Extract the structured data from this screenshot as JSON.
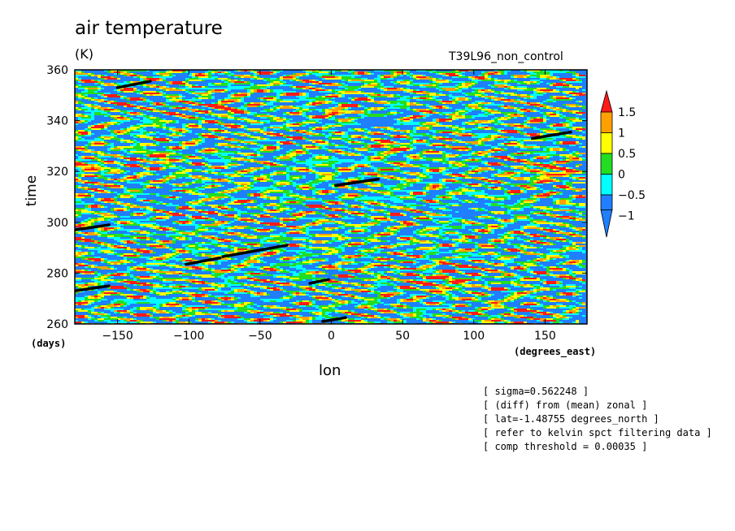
{
  "chart_data": {
    "type": "heatmap",
    "title": "air temperature",
    "units": "(K)",
    "subtitle": "T39L96_non_control",
    "xlabel": "lon",
    "xunits": "(degrees_east)",
    "ylabel": "time",
    "yunits": "(days)",
    "xlim": [
      -180,
      177
    ],
    "ylim": [
      260,
      360
    ],
    "xticks": [
      -150,
      -100,
      -50,
      0,
      50,
      100,
      150
    ],
    "yticks": [
      260,
      280,
      300,
      320,
      340,
      360
    ],
    "colorbar": {
      "labels": [
        "1.5",
        "1",
        "0.5",
        "0",
        "-0.5",
        "-1"
      ],
      "levels": [
        -1,
        -0.5,
        0,
        0.5,
        1,
        1.5
      ],
      "colors": [
        "#1f7fff",
        "#1f7fff",
        "#00ffff",
        "#22dd22",
        "#ffff00",
        "#ffa000",
        "#ff1a1a"
      ],
      "bin_colors_low_to_high": [
        "#1f7fff",
        "#00ffff",
        "#22dd22",
        "#ffff00",
        "#ffa000",
        "#ff1a1a"
      ]
    },
    "overlay_segments": [
      {
        "x": [
          -150,
          -127
        ],
        "y": [
          353,
          355.5
        ]
      },
      {
        "x": [
          141,
          168
        ],
        "y": [
          333,
          335.5
        ]
      },
      {
        "x": [
          3,
          33
        ],
        "y": [
          314.5,
          317
        ]
      },
      {
        "x": [
          -180,
          -156
        ],
        "y": [
          297,
          299
        ]
      },
      {
        "x": [
          -102,
          -78
        ],
        "y": [
          283.5,
          286
        ]
      },
      {
        "x": [
          -76,
          -31
        ],
        "y": [
          286.5,
          291
        ]
      },
      {
        "x": [
          -180,
          -156
        ],
        "y": [
          273,
          275
        ]
      },
      {
        "x": [
          -15,
          -2
        ],
        "y": [
          276,
          277.5
        ]
      },
      {
        "x": [
          -6,
          10
        ],
        "y": [
          261,
          262.5
        ]
      }
    ],
    "warm_patches": [
      {
        "x": 75,
        "y": 277,
        "size": 3
      },
      {
        "x": 155,
        "y": 320,
        "size": 3
      },
      {
        "x": -170,
        "y": 322,
        "size": 2
      },
      {
        "x": 10,
        "y": 343,
        "size": 2
      },
      {
        "x": -75,
        "y": 345,
        "size": 2
      },
      {
        "x": 40,
        "y": 330,
        "size": 2
      },
      {
        "x": -120,
        "y": 325,
        "size": 2
      }
    ],
    "cold_patches": [
      {
        "x": -120,
        "y": 310,
        "size": 3
      },
      {
        "x": 100,
        "y": 305,
        "size": 3
      },
      {
        "x": 30,
        "y": 340,
        "size": 3
      },
      {
        "x": -40,
        "y": 270,
        "size": 2
      }
    ],
    "annotations": [
      "[ sigma=0.562248 ]",
      "[ (diff) from (mean) zonal ]",
      "[ lat=-1.48755 degrees_north ]",
      "[ refer to kelvin spct filtering data ]",
      "[ comp threshold = 0.00035 ]"
    ]
  }
}
